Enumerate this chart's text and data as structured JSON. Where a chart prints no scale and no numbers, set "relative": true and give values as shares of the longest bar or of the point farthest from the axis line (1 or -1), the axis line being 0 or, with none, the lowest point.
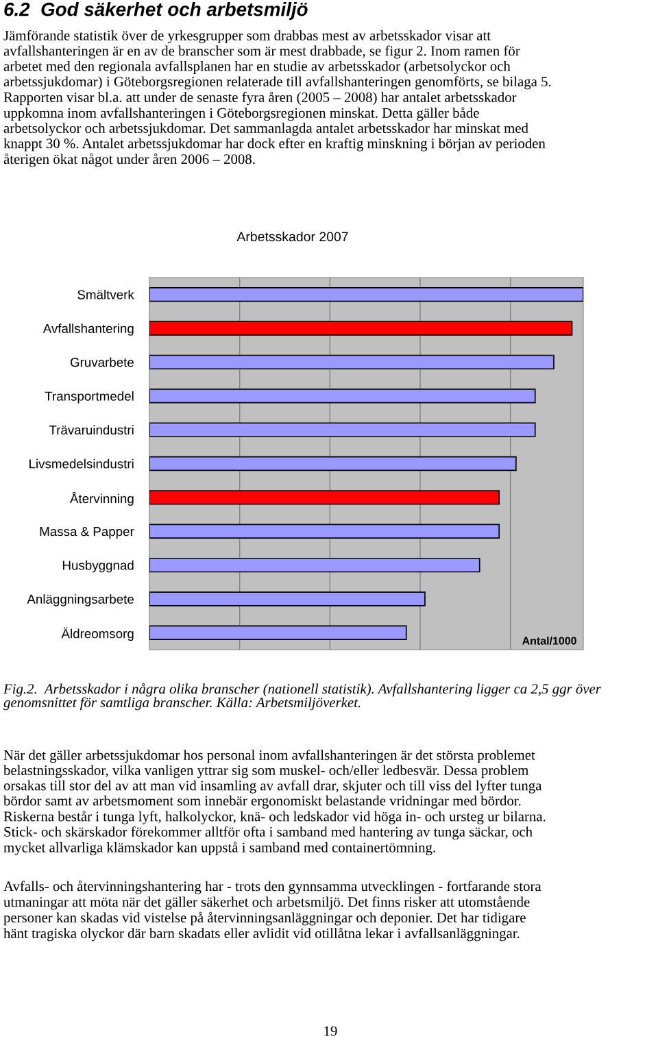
{
  "chart_data": {
    "type": "bar",
    "orientation": "horizontal",
    "relative": true,
    "title": "Arbetsskador 2007",
    "xlabel": "Antal/1000",
    "categories": [
      "Smältverk",
      "Avfallshantering",
      "Gruvarbete",
      "Transportmedel",
      "Trävaruindustri",
      "Livsmedelsindustri",
      "Återvinning",
      "Massa & Papper",
      "Husbyggnad",
      "Anläggningsarbete",
      "Äldreomsorg"
    ],
    "values": [
      1,
      0.974,
      0.932,
      0.889,
      0.889,
      0.845,
      0.806,
      0.806,
      0.761,
      0.635,
      0.592
    ],
    "colors": [
      "#9999ff",
      "#ff0000",
      "#9999ff",
      "#9999ff",
      "#9999ff",
      "#9999ff",
      "#ff0000",
      "#9999ff",
      "#9999ff",
      "#9999ff",
      "#9999ff"
    ],
    "grid": "x",
    "annotations": [
      "6.2  God säkerhet och arbetsmiljö",
      "Jämförande statistik över de yrkesgrupper som drabbas mest av arbetsskador visar att\navfallshanteringen är en av de branscher som är mest drabbade, se figur 2. Inom ramen för\narbetet med den regionala avfallsplanen har en studie av arbetsskador (arbetsolyckor och\narbetssjukdomar) i Göteborgsregionen relaterade till avfallshanteringen genomförts, se bilaga 5.\nRapporten visar bl.a. att under de senaste fyra åren (2005 – 2008) har antalet arbetsskador\nuppkomna inom avfallshanteringen i Göteborgsregionen minskat. Detta gäller både\narbetsolyckor och arbetssjukdomar. Det sammanlagda antalet arbetsskador har minskat med\nknappt 30 %. Antalet arbetssjukdomar har dock efter en kraftig minskning i början av perioden\nåterigen ökat något under åren 2006 – 2008.",
      "Fig.2.  Arbetsskador i några olika branscher (nationell statistik). Avfallshantering ligger ca 2,5 ggr över\ngenomsnittet för samtliga branscher. Källa: Arbetsmiljöverket.",
      "När det gäller arbetssjukdomar hos personal inom avfallshanteringen är det största problemet\nbelastningsskador, vilka vanligen yttrar sig som muskel- och/eller ledbesvär. Dessa problem\norsakas till stor del av att man vid insamling av avfall drar, skjuter och till viss del lyfter tunga\nbördor samt av arbetsmoment som innebär ergonomiskt belastande vridningar med bördor.\nRiskerna består i tunga lyft, halkolyckor, knä- och ledskador vid höga in- och ursteg ur bilarna.\nStick- och skärskador förekommer alltför ofta i samband med hantering av tunga säckar, och\nmycket allvarliga klämskador kan uppstå i samband med containertömning.",
      "Avfalls- och återvinningshantering har - trots den gynnsamma utvecklingen - fortfarande stora\nutmaningar att möta när det gäller säkerhet och arbetsmiljö. Det finns risker att utomstående\npersoner kan skadas vid vistelse på återvinningsanläggningar och deponier. Det har tidigare\nhänt tragiska olyckor där barn skadats eller avlidit vid otillåtna lekar i avfallsanläggningar.",
      "19"
    ]
  }
}
